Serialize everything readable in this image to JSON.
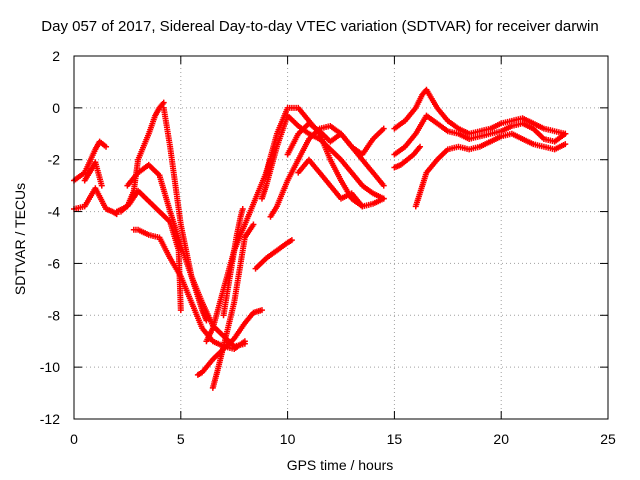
{
  "chart_data": {
    "type": "scatter",
    "title": "Day 057 of 2017, Sidereal Day-to-day VTEC variation (SDTVAR) for receiver darwin",
    "xlabel": "GPS time / hours",
    "ylabel": "SDTVAR / TECUs",
    "xlim": [
      0,
      25
    ],
    "ylim": [
      -12,
      2
    ],
    "xticks": [
      0,
      5,
      10,
      15,
      20,
      25
    ],
    "yticks": [
      -12,
      -10,
      -8,
      -6,
      -4,
      -2,
      0,
      2
    ],
    "grid": true,
    "marker": "+",
    "color": "#ff0000",
    "series": [
      {
        "x": [
          0.0,
          0.5,
          1.0,
          1.2,
          1.5
        ],
        "y": [
          -2.8,
          -2.5,
          -1.6,
          -1.3,
          -1.5
        ]
      },
      {
        "x": [
          0.0,
          0.5,
          1.0,
          1.5,
          1.8,
          2.0
        ],
        "y": [
          -3.9,
          -3.8,
          -3.1,
          -3.9,
          -4.0,
          -4.1
        ]
      },
      {
        "x": [
          0.5,
          0.8,
          1.0,
          1.3
        ],
        "y": [
          -2.8,
          -2.4,
          -2.1,
          -3.0
        ]
      },
      {
        "x": [
          2.0,
          2.5,
          2.8,
          3.0,
          3.5,
          3.8,
          4.0,
          4.2
        ],
        "y": [
          -4.0,
          -3.8,
          -3.2,
          -2.0,
          -1.0,
          -0.3,
          0.0,
          0.2
        ]
      },
      {
        "x": [
          4.2,
          4.5,
          5.0,
          5.5,
          6.0,
          6.2
        ],
        "y": [
          0.0,
          -1.5,
          -4.5,
          -6.5,
          -7.8,
          -8.2
        ]
      },
      {
        "x": [
          2.5,
          3.0,
          3.5,
          4.0,
          4.5,
          5.0,
          5.5,
          6.0,
          6.5,
          7.0,
          7.5,
          8.0
        ],
        "y": [
          -3.0,
          -2.5,
          -2.2,
          -2.6,
          -4.0,
          -5.3,
          -6.5,
          -7.5,
          -8.4,
          -8.8,
          -9.2,
          -9.1
        ]
      },
      {
        "x": [
          2.2,
          2.6,
          3.0,
          3.5,
          4.0,
          4.5,
          4.9,
          5.0
        ],
        "y": [
          -4.0,
          -3.7,
          -3.2,
          -3.6,
          -4.0,
          -4.4,
          -5.5,
          -7.8
        ]
      },
      {
        "x": [
          2.8,
          3.0,
          3.5,
          4.0,
          4.5,
          5.0,
          5.5,
          6.0,
          6.5,
          7.0,
          7.5,
          8.0
        ],
        "y": [
          -4.7,
          -4.7,
          -4.9,
          -5.0,
          -5.8,
          -6.5,
          -7.5,
          -8.5,
          -9.0,
          -9.2,
          -9.3,
          -9.0
        ]
      },
      {
        "x": [
          5.8,
          6.0,
          6.5,
          7.0,
          7.5,
          8.0,
          8.4,
          8.8
        ],
        "y": [
          -10.3,
          -10.2,
          -9.7,
          -9.3,
          -8.9,
          -8.3,
          -7.9,
          -7.8
        ]
      },
      {
        "x": [
          6.2,
          6.5,
          7.0,
          7.5,
          8.0,
          8.5,
          9.0,
          9.2
        ],
        "y": [
          -9.0,
          -8.5,
          -7.0,
          -5.5,
          -4.5,
          -3.5,
          -2.5,
          -2.0
        ]
      },
      {
        "x": [
          6.5,
          6.7,
          7.0,
          7.5,
          7.8,
          8.0,
          8.4
        ],
        "y": [
          -10.8,
          -10.2,
          -9.2,
          -7.5,
          -6.0,
          -5.0,
          -4.5
        ]
      },
      {
        "x": [
          7.0,
          7.3,
          7.6,
          7.8,
          7.9
        ],
        "y": [
          -8.0,
          -6.5,
          -5.0,
          -4.2,
          -3.9
        ]
      },
      {
        "x": [
          8.5,
          9.0,
          9.5,
          10.0,
          10.2
        ],
        "y": [
          -6.2,
          -5.8,
          -5.5,
          -5.2,
          -5.1
        ]
      },
      {
        "x": [
          8.8,
          9.0,
          9.5,
          10.0,
          10.5,
          11.0,
          11.5,
          12.0,
          12.5,
          13.0,
          13.5,
          14.0,
          14.5
        ],
        "y": [
          -3.5,
          -3.0,
          -1.5,
          -0.3,
          -0.7,
          -1.0,
          -1.2,
          -1.6,
          -2.0,
          -2.5,
          -3.0,
          -3.3,
          -3.5
        ]
      },
      {
        "x": [
          9.0,
          9.5,
          10.0,
          10.5,
          11.0,
          11.5,
          12.0,
          12.5,
          13.0,
          13.5
        ],
        "y": [
          -2.5,
          -1.0,
          0.0,
          0.0,
          -0.5,
          -1.0,
          -2.0,
          -2.8,
          -3.5,
          -3.8
        ]
      },
      {
        "x": [
          9.2,
          9.5,
          10.0,
          10.5,
          11.0,
          11.5,
          12.0,
          12.5,
          13.0,
          13.5,
          14.0,
          14.5
        ],
        "y": [
          -4.2,
          -3.8,
          -2.8,
          -2.0,
          -1.2,
          -0.8,
          -0.7,
          -1.0,
          -1.5,
          -2.0,
          -2.5,
          -3.0
        ]
      },
      {
        "x": [
          10.0,
          10.5,
          11.0,
          11.5,
          12.0,
          12.5,
          13.0,
          13.5,
          14.0,
          14.5
        ],
        "y": [
          -1.8,
          -1.0,
          -0.6,
          -0.9,
          -1.3,
          -1.0,
          -1.5,
          -1.8,
          -1.2,
          -0.8
        ]
      },
      {
        "x": [
          10.5,
          11.0,
          11.5,
          12.0,
          12.5,
          13.0,
          13.5,
          14.0,
          14.5
        ],
        "y": [
          -2.5,
          -2.0,
          -2.5,
          -3.0,
          -3.5,
          -3.3,
          -3.8,
          -3.7,
          -3.5
        ]
      },
      {
        "x": [
          15.0,
          15.5,
          16.0,
          16.3,
          16.5,
          17.0,
          17.5,
          18.0,
          18.5,
          19.0,
          19.5,
          20.0,
          20.5,
          21.0,
          21.5,
          22.0,
          22.5,
          23.0
        ],
        "y": [
          -0.8,
          -0.5,
          0.0,
          0.5,
          0.7,
          0.0,
          -0.5,
          -0.8,
          -1.0,
          -0.9,
          -0.8,
          -0.6,
          -0.5,
          -0.4,
          -0.6,
          -0.8,
          -0.9,
          -1.0
        ]
      },
      {
        "x": [
          15.0,
          15.5,
          16.0,
          16.5,
          17.0,
          17.5,
          18.0,
          18.5,
          19.0,
          19.5,
          20.0,
          20.5,
          21.0,
          21.5,
          22.0,
          22.5,
          23.0
        ],
        "y": [
          -1.8,
          -1.5,
          -1.0,
          -0.3,
          -0.6,
          -0.9,
          -1.0,
          -1.2,
          -1.1,
          -1.0,
          -0.9,
          -0.7,
          -0.6,
          -0.8,
          -1.2,
          -1.3,
          -1.0
        ]
      },
      {
        "x": [
          16.0,
          16.5,
          17.0,
          17.5,
          18.0,
          18.5,
          19.0,
          19.5,
          20.0,
          20.5,
          21.0,
          21.5,
          22.0,
          22.5,
          23.0
        ],
        "y": [
          -3.8,
          -2.5,
          -2.0,
          -1.6,
          -1.5,
          -1.6,
          -1.5,
          -1.3,
          -1.1,
          -1.0,
          -1.2,
          -1.4,
          -1.5,
          -1.6,
          -1.4
        ]
      },
      {
        "x": [
          15.0,
          15.3,
          15.6,
          15.9,
          16.2
        ],
        "y": [
          -2.3,
          -2.2,
          -2.0,
          -1.8,
          -1.5
        ]
      }
    ]
  }
}
